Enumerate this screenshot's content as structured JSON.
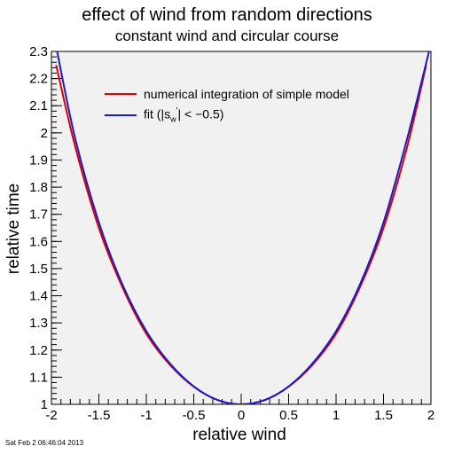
{
  "title": "effect of wind from random directions",
  "subtitle": "constant wind and circular course",
  "timestamp": "Sat Feb  2 06:46:04 2013",
  "chart_data": {
    "type": "line",
    "xlabel": "relative wind",
    "ylabel": "relative time",
    "xlim": [
      -2,
      2
    ],
    "ylim": [
      1,
      2.3
    ],
    "x_ticks": [
      -2,
      -1.5,
      -1,
      -0.5,
      0,
      0.5,
      1,
      1.5,
      2
    ],
    "x_tick_labels": [
      "-2",
      "-1.5",
      "-1",
      "-0.5",
      "0",
      "0.5",
      "1",
      "1.5",
      "2"
    ],
    "y_ticks": [
      1,
      1.1,
      1.2,
      1.3,
      1.4,
      1.5,
      1.6,
      1.7,
      1.8,
      1.9,
      2,
      2.1,
      2.2,
      2.3
    ],
    "y_tick_labels": [
      "1",
      "1.1",
      "1.2",
      "1.3",
      "1.4",
      "1.5",
      "1.6",
      "1.7",
      "1.8",
      "1.9",
      "2",
      "2.1",
      "2.2",
      "2.3"
    ],
    "grid": false,
    "legend_position": "top-left",
    "series": [
      {
        "name": "numerical integration of simple model",
        "color": "#dd0000",
        "x": [
          -1.95,
          -1.75,
          -1.5,
          -1.25,
          -1.0,
          -0.75,
          -0.5,
          -0.25,
          0,
          0.25,
          0.5,
          0.75,
          1.0,
          1.25,
          1.5,
          1.75,
          1.95
        ],
        "y": [
          2.25,
          1.95,
          1.65,
          1.43,
          1.26,
          1.145,
          1.065,
          1.016,
          1.0,
          1.016,
          1.065,
          1.145,
          1.26,
          1.43,
          1.65,
          1.95,
          2.25
        ]
      },
      {
        "name_prefix": "fit (|s",
        "name_sub": "w",
        "name_sup": "'",
        "name_suffix": "| < −0.5)",
        "color": "#1a1ac8",
        "x": [
          -1.94,
          -1.75,
          -1.5,
          -1.25,
          -1.0,
          -0.75,
          -0.5,
          -0.25,
          0,
          0.25,
          0.5,
          0.75,
          1.0,
          1.25,
          1.5,
          1.75,
          1.98
        ],
        "y": [
          2.3,
          1.98,
          1.67,
          1.44,
          1.27,
          1.15,
          1.066,
          1.016,
          1.0,
          1.016,
          1.066,
          1.15,
          1.27,
          1.44,
          1.67,
          1.98,
          2.3
        ]
      }
    ]
  }
}
